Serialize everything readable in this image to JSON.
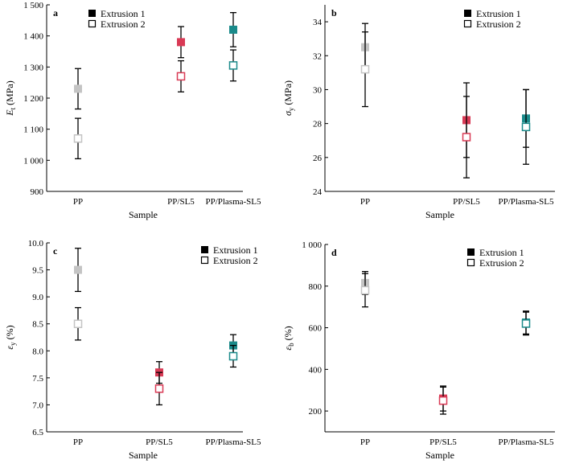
{
  "legend": {
    "entry1": "Extrusion 1",
    "entry2": "Extrusion 2"
  },
  "colors": {
    "PP": "#c4c4c4",
    "PP/SL5": "#d93a55",
    "PP/Plasma-SL5": "#1a8a8a"
  },
  "chart_data": [
    {
      "type": "scatter",
      "panel": "a",
      "xlabel": "Sample",
      "ylabel_main": "E",
      "ylabel_sub": "t",
      "ylabel_unit": "(MPa)",
      "categories": [
        "PP",
        "PP/SL5",
        "PP/Plasma-SL5"
      ],
      "ylim": [
        900,
        1500
      ],
      "yticks": [
        900,
        1000,
        1100,
        1200,
        1300,
        1400,
        1500
      ],
      "yticklabels": [
        "900",
        "1 000",
        "1 100",
        "1 200",
        "1 300",
        "1 400",
        "1 500"
      ],
      "legend_position": "top-center",
      "series": [
        {
          "name": "Extrusion 1",
          "values": [
            1230,
            1380,
            1420
          ],
          "errors": [
            65,
            50,
            55
          ]
        },
        {
          "name": "Extrusion 2",
          "values": [
            1070,
            1270,
            1305
          ],
          "errors": [
            65,
            50,
            50
          ]
        }
      ]
    },
    {
      "type": "scatter",
      "panel": "b",
      "xlabel": "Sample",
      "ylabel_main": "σ",
      "ylabel_sub": "y",
      "ylabel_unit": "(MPa)",
      "categories": [
        "PP",
        "PP/SL5",
        "PP/Plasma-SL5"
      ],
      "ylim": [
        24,
        35
      ],
      "yticks": [
        24,
        26,
        28,
        30,
        32,
        34
      ],
      "yticklabels": [
        "24",
        "26",
        "28",
        "30",
        "32",
        "34"
      ],
      "legend_position": "top-right",
      "series": [
        {
          "name": "Extrusion 1",
          "values": [
            32.5,
            28.2,
            28.3
          ],
          "errors": [
            1.4,
            2.2,
            1.7
          ]
        },
        {
          "name": "Extrusion 2",
          "values": [
            31.2,
            27.2,
            27.8
          ],
          "errors": [
            2.2,
            2.4,
            2.2
          ]
        }
      ]
    },
    {
      "type": "scatter",
      "panel": "c",
      "xlabel": "Sample",
      "ylabel_main": "ε",
      "ylabel_sub": "y",
      "ylabel_unit": "(%)",
      "categories": [
        "PP",
        "PP/SL5",
        "PP/Plasma-SL5"
      ],
      "ylim": [
        6.5,
        10.0
      ],
      "yticks": [
        6.5,
        7.0,
        7.5,
        8.0,
        8.5,
        9.0,
        9.5,
        10.0
      ],
      "yticklabels": [
        "6.5",
        "7.0",
        "7.5",
        "8.0",
        "8.5",
        "9.0",
        "9.5",
        "10.0"
      ],
      "legend_position": "top-right",
      "series": [
        {
          "name": "Extrusion 1",
          "values": [
            9.5,
            7.6,
            8.1
          ],
          "errors": [
            0.4,
            0.2,
            0.2
          ]
        },
        {
          "name": "Extrusion 2",
          "values": [
            8.5,
            7.3,
            7.9
          ],
          "errors": [
            0.3,
            0.3,
            0.2
          ]
        }
      ]
    },
    {
      "type": "scatter",
      "panel": "d",
      "xlabel": "Sample",
      "ylabel_main": "ε",
      "ylabel_sub": "b",
      "ylabel_unit": "(%)",
      "categories": [
        "PP",
        "PP/SL5",
        "PP/Plasma-SL5"
      ],
      "ylim": [
        100,
        1000
      ],
      "yticks": [
        200,
        400,
        600,
        800,
        1000
      ],
      "yticklabels": [
        "200",
        "400",
        "600",
        "800",
        "1 000"
      ],
      "legend_position": "top-right",
      "series": [
        {
          "name": "Extrusion 1",
          "values": [
            815,
            260,
            625
          ],
          "errors": [
            55,
            60,
            55
          ]
        },
        {
          "name": "Extrusion 2",
          "values": [
            780,
            250,
            620
          ],
          "errors": [
            80,
            65,
            55
          ]
        }
      ]
    }
  ]
}
